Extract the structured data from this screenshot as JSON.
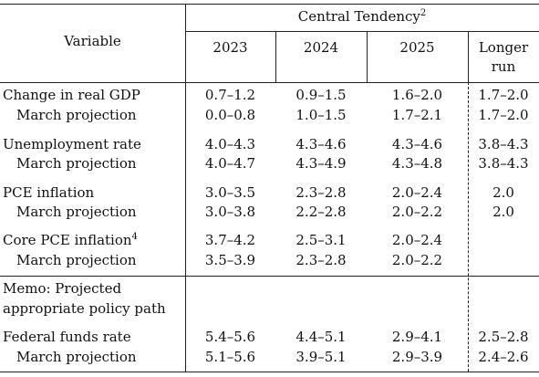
{
  "header": {
    "variable": "Variable",
    "group": "Central Tendency",
    "group_note": "2",
    "years": [
      "2023",
      "2024",
      "2025"
    ],
    "longer_run_line1": "Longer",
    "longer_run_line2": "run"
  },
  "rows": [
    {
      "label": "Change in real GDP",
      "note": "",
      "v2023": "0.7–1.2",
      "v2024": "0.9–1.5",
      "v2025": "1.6–2.0",
      "longer": "1.7–2.0"
    },
    {
      "label": "March projection",
      "note": "",
      "v2023": "0.0–0.8",
      "v2024": "1.0–1.5",
      "v2025": "1.7–2.1",
      "longer": "1.7–2.0"
    },
    {
      "label": "Unemployment rate",
      "note": "",
      "v2023": "4.0–4.3",
      "v2024": "4.3–4.6",
      "v2025": "4.3–4.6",
      "longer": "3.8–4.3"
    },
    {
      "label": "March projection",
      "note": "",
      "v2023": "4.0–4.7",
      "v2024": "4.3–4.9",
      "v2025": "4.3–4.8",
      "longer": "3.8–4.3"
    },
    {
      "label": "PCE inflation",
      "note": "",
      "v2023": "3.0–3.5",
      "v2024": "2.3–2.8",
      "v2025": "2.0–2.4",
      "longer": "2.0"
    },
    {
      "label": "March projection",
      "note": "",
      "v2023": "3.0–3.8",
      "v2024": "2.2–2.8",
      "v2025": "2.0–2.2",
      "longer": "2.0"
    },
    {
      "label": "Core PCE inflation",
      "note": "4",
      "v2023": "3.7–4.2",
      "v2024": "2.5–3.1",
      "v2025": "2.0–2.4",
      "longer": ""
    },
    {
      "label": "March projection",
      "note": "",
      "v2023": "3.5–3.9",
      "v2024": "2.3–2.8",
      "v2025": "2.0–2.2",
      "longer": ""
    },
    {
      "label": "Federal funds rate",
      "note": "",
      "v2023": "5.4–5.6",
      "v2024": "4.4–5.1",
      "v2025": "2.9–4.1",
      "longer": "2.5–2.8"
    },
    {
      "label": "March projection",
      "note": "",
      "v2023": "5.1–5.6",
      "v2024": "3.9–5.1",
      "v2025": "2.9–3.9",
      "longer": "2.4–2.6"
    }
  ],
  "memo": {
    "line1": "Memo: Projected",
    "line2": "appropriate policy path"
  }
}
